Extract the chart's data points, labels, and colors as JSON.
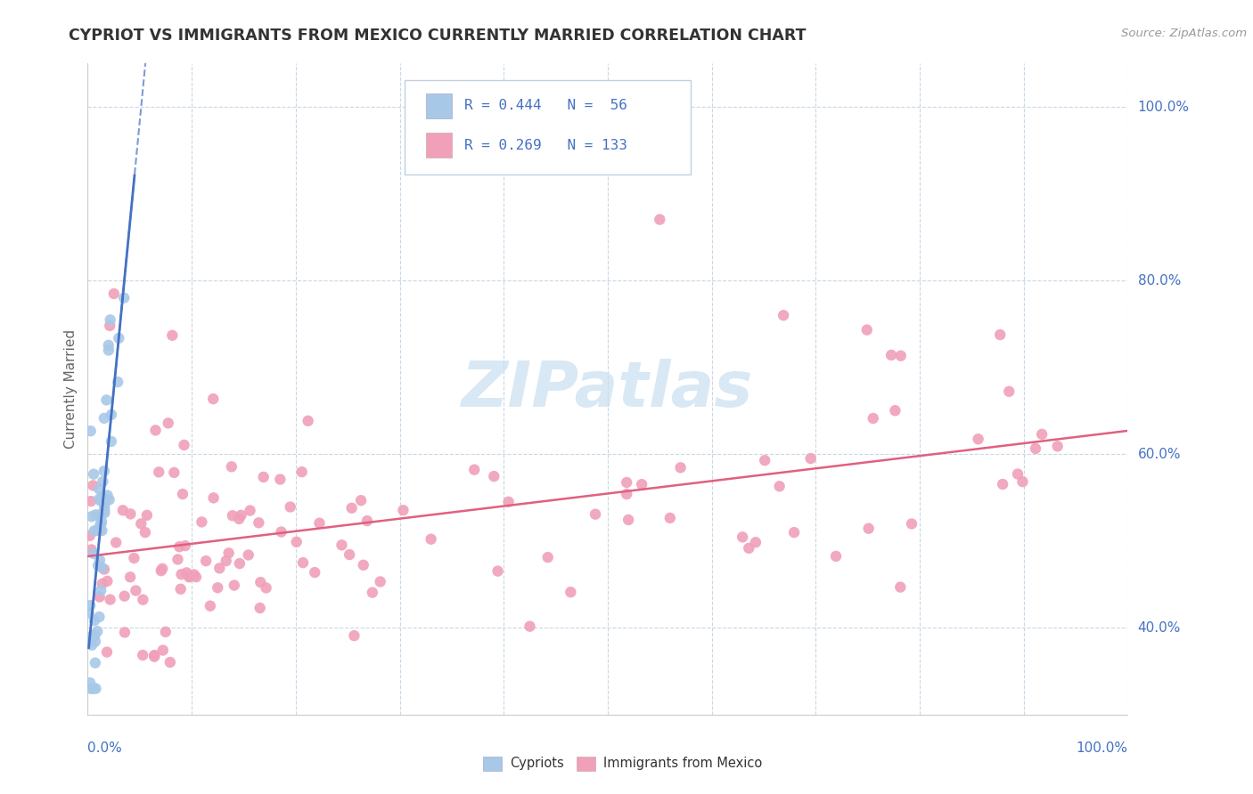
{
  "title": "CYPRIOT VS IMMIGRANTS FROM MEXICO CURRENTLY MARRIED CORRELATION CHART",
  "source_text": "Source: ZipAtlas.com",
  "ylabel": "Currently Married",
  "ytick_positions": [
    0.4,
    0.6,
    0.8,
    1.0
  ],
  "ytick_labels": [
    "40.0%",
    "60.0%",
    "80.0%",
    "100.0%"
  ],
  "legend_line1": "R = 0.444   N =  56",
  "legend_line2": "R = 0.269   N = 133",
  "legend_label1": "Cypriots",
  "legend_label2": "Immigrants from Mexico",
  "color_blue": "#a8c8e8",
  "color_pink": "#f0a0b8",
  "trendline_blue": "#4472c4",
  "trendline_pink": "#e06080",
  "watermark_color": "#c8dff0",
  "background_color": "#ffffff",
  "grid_color": "#c8d8e8",
  "text_color": "#4472c4",
  "title_color": "#333333",
  "source_color": "#999999",
  "ylabel_color": "#666666",
  "xlim": [
    0.0,
    1.0
  ],
  "ylim": [
    0.3,
    1.05
  ],
  "blue_seed": 12,
  "pink_seed": 77,
  "n_blue": 56,
  "n_pink": 133
}
